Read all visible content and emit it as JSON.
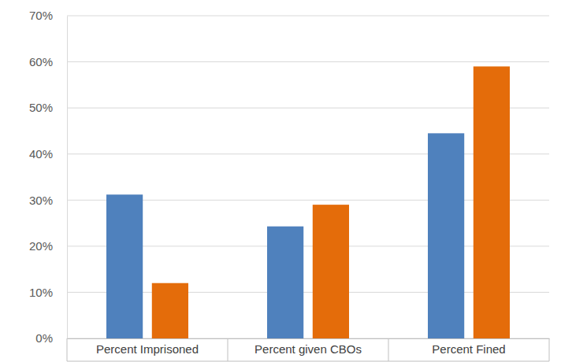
{
  "chart_data": {
    "type": "bar",
    "categories": [
      "Percent Imprisoned",
      "Percent given CBOs",
      "Percent Fined"
    ],
    "series": [
      {
        "color": "#4f81bd",
        "values": [
          31.2,
          24.3,
          44.5
        ]
      },
      {
        "color": "#e46c0a",
        "values": [
          12,
          29,
          59
        ]
      }
    ],
    "ylim": [
      0,
      70
    ],
    "yticks": [
      {
        "value": 0,
        "label": "0%"
      },
      {
        "value": 10,
        "label": "10%"
      },
      {
        "value": 20,
        "label": "20%"
      },
      {
        "value": 30,
        "label": "30%"
      },
      {
        "value": 40,
        "label": "40%"
      },
      {
        "value": 50,
        "label": "50%"
      },
      {
        "value": 60,
        "label": "60%"
      },
      {
        "value": 70,
        "label": "70%"
      }
    ],
    "grid": true
  }
}
